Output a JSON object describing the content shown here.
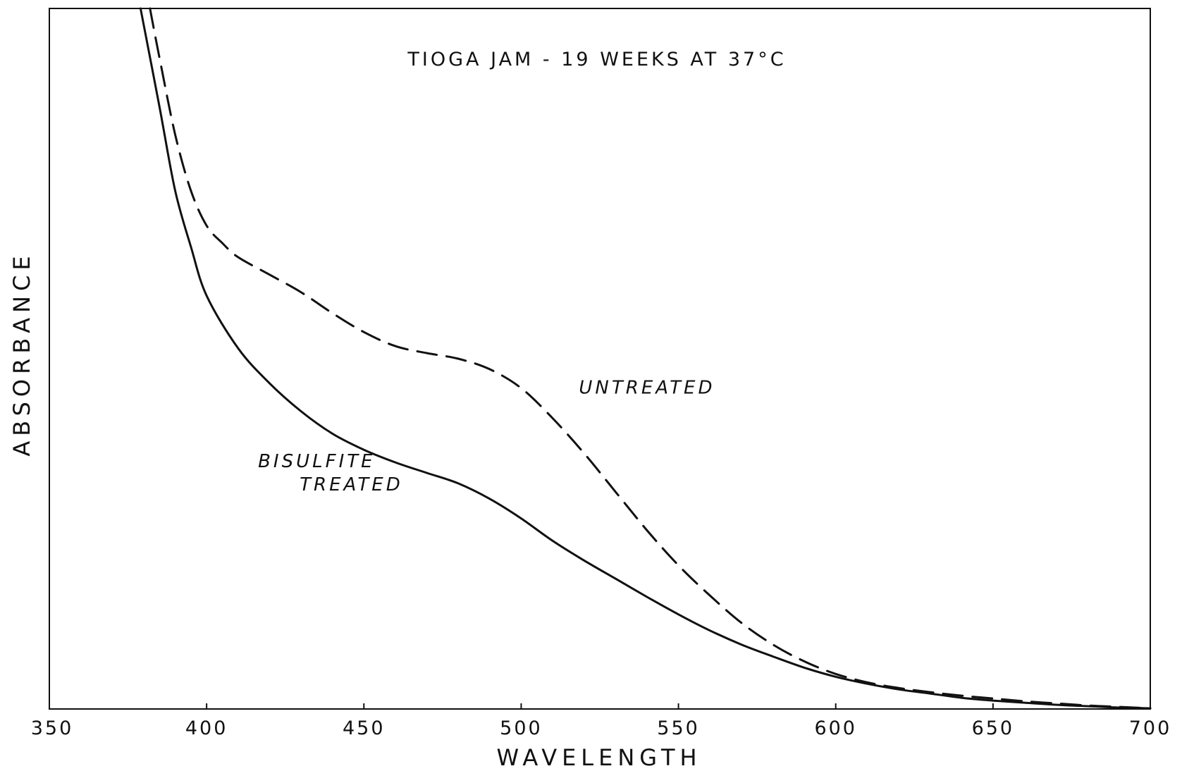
{
  "chart_data": {
    "type": "line",
    "title": "TIOGA JAM - 19 WEEKS AT 37°C",
    "xlabel": "WAVELENGTH",
    "ylabel": "ABSORBANCE",
    "xlim": [
      350,
      700
    ],
    "ylim": [
      0,
      1
    ],
    "x_ticks": [
      "350",
      "400",
      "450",
      "500",
      "550",
      "600",
      "650",
      "700"
    ],
    "y_ticks_shown": false,
    "grid": false,
    "legend": "none",
    "series": [
      {
        "name": "BISULFITE TREATED",
        "style": "solid",
        "x": [
          379,
          385,
          390,
          395,
          400,
          410,
          420,
          430,
          440,
          450,
          460,
          470,
          480,
          490,
          500,
          510,
          520,
          530,
          540,
          550,
          560,
          570,
          580,
          590,
          600,
          610,
          620,
          630,
          640,
          650,
          660,
          670,
          680,
          690,
          700
        ],
        "y": [
          1.0,
          0.86,
          0.74,
          0.66,
          0.59,
          0.515,
          0.465,
          0.425,
          0.393,
          0.37,
          0.352,
          0.337,
          0.322,
          0.3,
          0.272,
          0.24,
          0.212,
          0.186,
          0.16,
          0.135,
          0.112,
          0.092,
          0.075,
          0.059,
          0.046,
          0.036,
          0.028,
          0.022,
          0.016,
          0.012,
          0.009,
          0.006,
          0.004,
          0.002,
          0.001
        ]
      },
      {
        "name": "UNTREATED",
        "style": "dashed",
        "x": [
          382,
          385,
          390,
          395,
          400,
          405,
          410,
          420,
          430,
          440,
          450,
          460,
          470,
          480,
          490,
          500,
          510,
          520,
          530,
          540,
          550,
          560,
          570,
          580,
          590,
          600,
          610,
          620,
          630,
          640,
          650,
          660,
          670,
          680,
          690,
          700
        ],
        "y": [
          1.0,
          0.93,
          0.82,
          0.74,
          0.69,
          0.665,
          0.645,
          0.62,
          0.595,
          0.565,
          0.538,
          0.518,
          0.508,
          0.5,
          0.485,
          0.458,
          0.415,
          0.365,
          0.31,
          0.255,
          0.205,
          0.162,
          0.123,
          0.092,
          0.068,
          0.05,
          0.038,
          0.03,
          0.024,
          0.019,
          0.015,
          0.011,
          0.008,
          0.005,
          0.003,
          0.001
        ]
      }
    ],
    "annotations": [
      {
        "text": "UNTREATED",
        "x": 540,
        "y": 0.45
      },
      {
        "text": "BISULFITE",
        "x": 435,
        "y": 0.345
      },
      {
        "text": "TREATED",
        "x": 446,
        "y": 0.312
      }
    ]
  }
}
